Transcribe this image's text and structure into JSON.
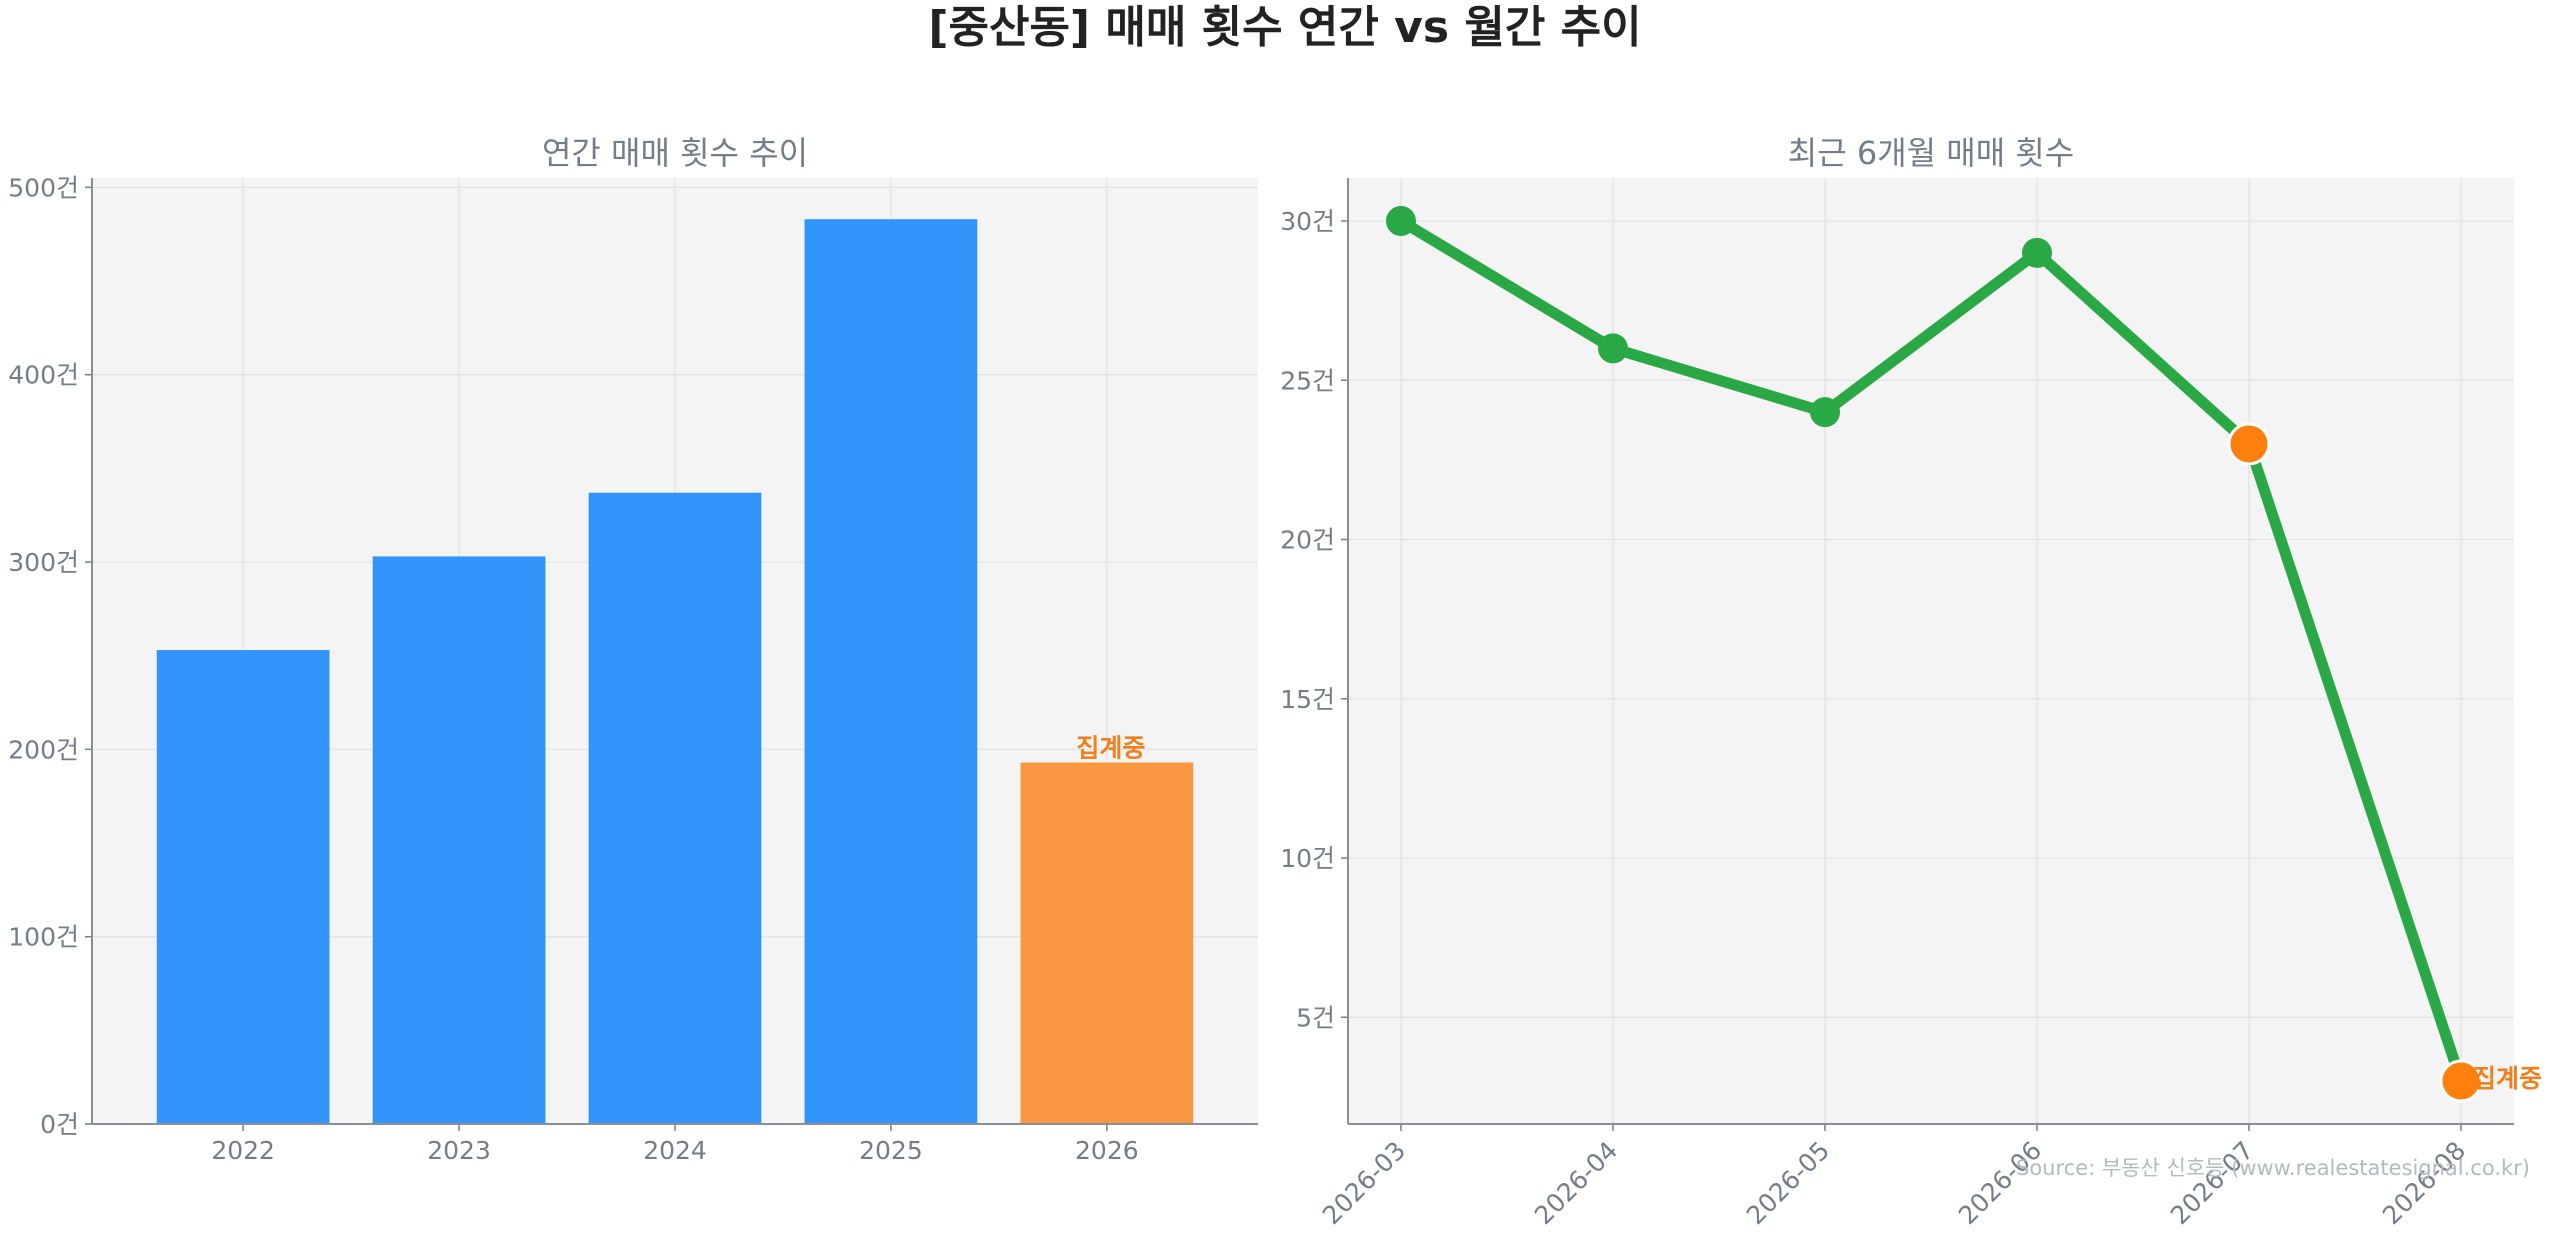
{
  "page": {
    "title": "[중산동] 매매 횟수 연간 vs 월간 추이",
    "source": "Source: 부동산 신호등 (www.realestatesignal.co.kr)"
  },
  "colors": {
    "bar_main": "#3394fb",
    "bar_highlight": "#fa9841",
    "line": "#2aa845",
    "point_highlight": "#ff7f0e",
    "annotation": "#f07f1d",
    "axis_text": "#757d86",
    "title_text": "#222222",
    "panel_bg": "#f4f4f4",
    "grid": "#e3e3e3",
    "source_text": "#b5b9be"
  },
  "chart_data": [
    {
      "type": "bar",
      "title": "연간 매매 횟수 추이",
      "xlabel": "",
      "ylabel": "",
      "categories": [
        "2022",
        "2023",
        "2024",
        "2025",
        "2026"
      ],
      "values": [
        253,
        303,
        337,
        483,
        193
      ],
      "highlight_index": 4,
      "annotation": {
        "index": 4,
        "text": "집계중"
      },
      "ylim": [
        0,
        505
      ],
      "yticks": [
        0,
        100,
        200,
        300,
        400,
        500
      ],
      "ytick_suffix": "건",
      "grid": true
    },
    {
      "type": "line",
      "title": "최근 6개월 매매 횟수",
      "xlabel": "",
      "ylabel": "",
      "categories": [
        "2026-03",
        "2026-04",
        "2026-05",
        "2026-06",
        "2026-07",
        "2026-08"
      ],
      "values": [
        30,
        26,
        24,
        29,
        23,
        3
      ],
      "highlight_indices": [
        4,
        5
      ],
      "annotation": {
        "index": 5,
        "text": "집계중"
      },
      "ylim": [
        1.65,
        31.35
      ],
      "yticks": [
        5,
        10,
        15,
        20,
        25,
        30
      ],
      "ytick_suffix": "건",
      "grid": true
    }
  ]
}
